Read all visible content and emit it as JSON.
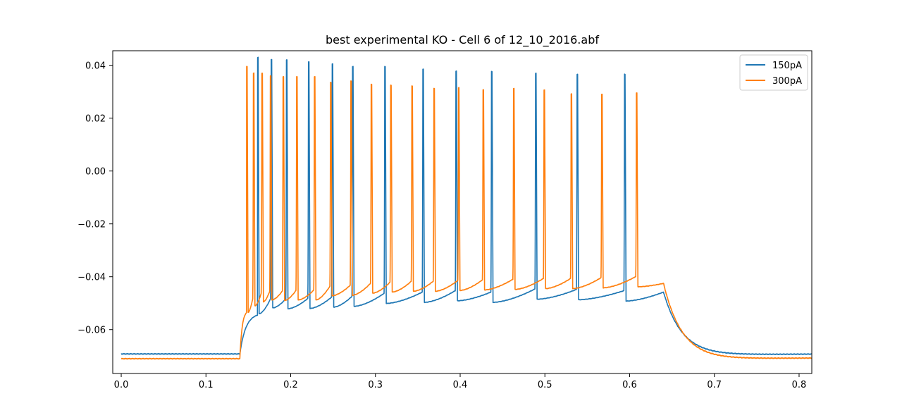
{
  "chart_data": {
    "type": "line",
    "title": "best experimental KO - Cell 6 of 12_10_2016.abf",
    "xlabel": "",
    "ylabel": "",
    "xlim": [
      -0.01,
      0.815
    ],
    "ylim": [
      -0.0766,
      0.0455
    ],
    "x_ticks": [
      0.0,
      0.1,
      0.2,
      0.3,
      0.4,
      0.5,
      0.6,
      0.7,
      0.8
    ],
    "x_tick_labels": [
      "0.0",
      "0.1",
      "0.2",
      "0.3",
      "0.4",
      "0.5",
      "0.6",
      "0.7",
      "0.8"
    ],
    "y_ticks": [
      -0.06,
      -0.04,
      -0.02,
      0.0,
      0.02,
      0.04
    ],
    "y_tick_labels": [
      "−0.06",
      "−0.04",
      "−0.02",
      "0.00",
      "0.02",
      "0.04"
    ],
    "grid": false,
    "legend_position": "top-right",
    "stim_window": [
      0.14,
      0.64
    ],
    "series": [
      {
        "name": "150pA",
        "color": "#1f77b4",
        "rest": -0.0692,
        "end_rest": -0.0691,
        "onset_value": -0.0545,
        "offset_value": -0.0458,
        "spike_times": [
          0.161,
          0.177,
          0.195,
          0.221,
          0.249,
          0.273,
          0.311,
          0.356,
          0.395,
          0.437,
          0.489,
          0.538,
          0.594
        ],
        "spike_peaks": [
          0.043,
          0.0422,
          0.042,
          0.0413,
          0.0405,
          0.0395,
          0.0395,
          0.0385,
          0.0378,
          0.0376,
          0.037,
          0.0366,
          0.0366
        ],
        "trough_values": [
          -0.054,
          -0.0518,
          -0.0521,
          -0.052,
          -0.0515,
          -0.0512,
          -0.0501,
          -0.0497,
          -0.0491,
          -0.0497,
          -0.0485,
          -0.0487,
          -0.0492
        ]
      },
      {
        "name": "300pA",
        "color": "#ff7f0e",
        "rest": -0.071,
        "end_rest": -0.0706,
        "onset_value": -0.0535,
        "offset_value": -0.0425,
        "spike_times": [
          0.148,
          0.156,
          0.166,
          0.176,
          0.191,
          0.207,
          0.228,
          0.247,
          0.271,
          0.295,
          0.318,
          0.343,
          0.369,
          0.398,
          0.427,
          0.463,
          0.499,
          0.531,
          0.567,
          0.608
        ],
        "spike_peaks": [
          0.0395,
          0.037,
          0.037,
          0.036,
          0.0357,
          0.0357,
          0.0357,
          0.0335,
          0.034,
          0.0328,
          0.0325,
          0.0322,
          0.0312,
          0.0315,
          0.0307,
          0.0312,
          0.0307,
          0.0292,
          0.029,
          0.0295
        ],
        "trough_values": [
          -0.0535,
          -0.051,
          -0.0495,
          -0.0488,
          -0.049,
          -0.0488,
          -0.0488,
          -0.0472,
          -0.047,
          -0.0462,
          -0.0458,
          -0.0455,
          -0.0455,
          -0.0452,
          -0.045,
          -0.0448,
          -0.0445,
          -0.0445,
          -0.0442,
          -0.0438
        ]
      }
    ]
  }
}
